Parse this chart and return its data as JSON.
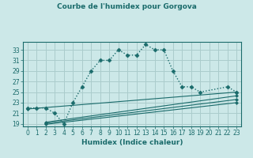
{
  "title": "Courbe de l'humidex pour Gorgova",
  "xlabel": "Humidex (Indice chaleur)",
  "bg_color": "#cce8e8",
  "grid_color": "#aacccc",
  "line_color": "#1a6b6b",
  "xlim": [
    -0.5,
    23.5
  ],
  "ylim": [
    18.5,
    34.5
  ],
  "xticks": [
    0,
    1,
    2,
    3,
    4,
    5,
    6,
    7,
    8,
    9,
    10,
    11,
    12,
    13,
    14,
    15,
    16,
    17,
    18,
    19,
    20,
    21,
    22,
    23
  ],
  "yticks": [
    19,
    21,
    23,
    25,
    27,
    29,
    31,
    33
  ],
  "main_curve_x": [
    0,
    1,
    2,
    3,
    4,
    5,
    6,
    7,
    8,
    9,
    10,
    11,
    12,
    13,
    14,
    15,
    16,
    17,
    18,
    19,
    22,
    23
  ],
  "main_curve_y": [
    22,
    22,
    22,
    21,
    19,
    23,
    26,
    29,
    31,
    31,
    33,
    32,
    32,
    34,
    33,
    33,
    29,
    26,
    26,
    25,
    26,
    25
  ],
  "ref_lines": [
    {
      "x": [
        0,
        23
      ],
      "y": [
        21.8,
        25.0
      ]
    },
    {
      "x": [
        2,
        23
      ],
      "y": [
        19.3,
        24.3
      ]
    },
    {
      "x": [
        2,
        23
      ],
      "y": [
        19.1,
        23.6
      ]
    },
    {
      "x": [
        2,
        23
      ],
      "y": [
        18.9,
        23.0
      ]
    }
  ]
}
